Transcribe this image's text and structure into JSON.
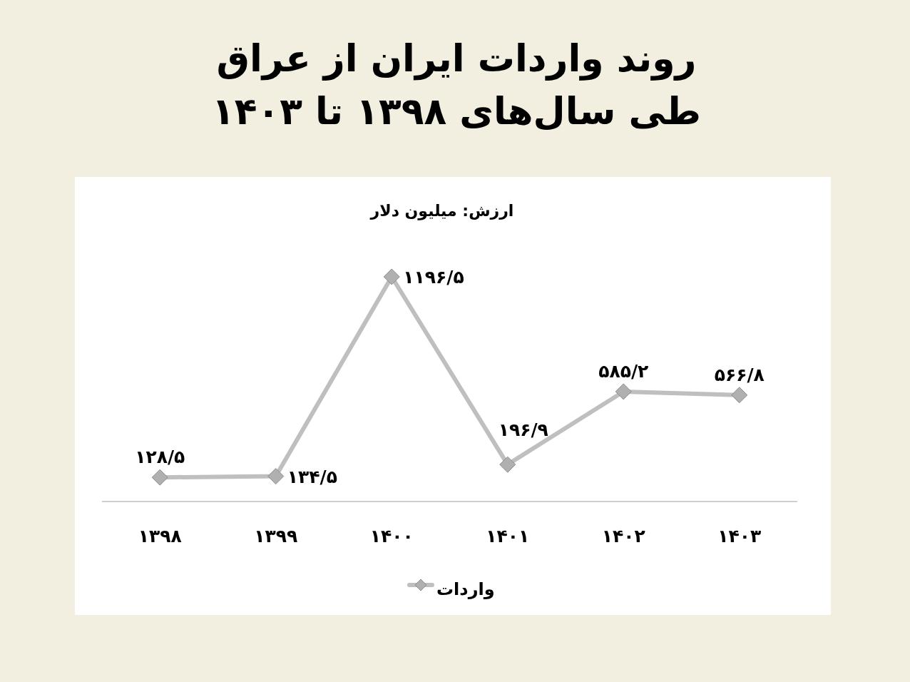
{
  "chart_data": {
    "type": "line",
    "title": "روند واردات ایران از عراق\nطی سال‌های ۱۳۹۸ تا ۱۴۰۳",
    "subtitle": "ارزش: میلیون دلار",
    "categories": [
      "۱۳۹۸",
      "۱۳۹۹",
      "۱۴۰۰",
      "۱۴۰۱",
      "۱۴۰۲",
      "۱۴۰۳"
    ],
    "series": [
      {
        "name": "واردات",
        "color": "#bfbfbf",
        "values": [
          128.5,
          134.5,
          1196.5,
          196.9,
          585.2,
          566.8
        ],
        "value_labels": [
          "۱۲۸/۵",
          "۱۳۴/۵",
          "۱۱۹۶/۵",
          "۱۹۶/۹",
          "۵۸۵/۲",
          "۵۶۶/۸"
        ]
      }
    ],
    "marker": "diamond",
    "line_style": "solid",
    "legend": "bottom",
    "tick_labels": "x"
  }
}
